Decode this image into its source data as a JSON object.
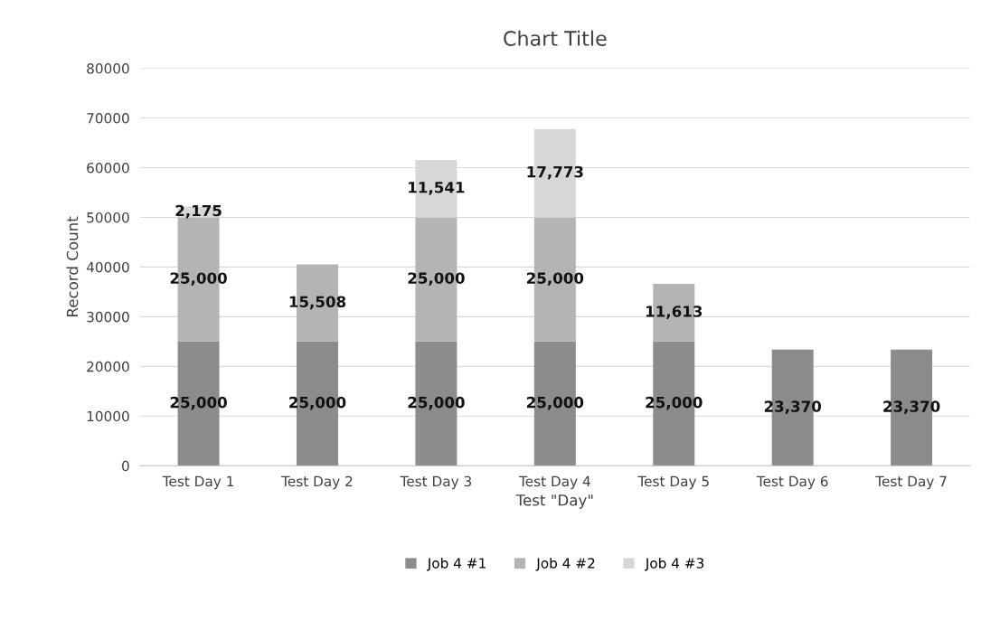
{
  "chart_data": {
    "type": "bar",
    "title": "Chart Title",
    "xlabel": "Test \"Day\"",
    "ylabel": "Record Count",
    "categories": [
      "Test Day 1",
      "Test Day 2",
      "Test Day 3",
      "Test Day 4",
      "Test Day 5",
      "Test Day 6",
      "Test Day 7"
    ],
    "stacked": true,
    "ylim": [
      0,
      80000
    ],
    "yticks": [
      0,
      10000,
      20000,
      30000,
      40000,
      50000,
      60000,
      70000,
      80000
    ],
    "grid": "y",
    "legend": "bottom",
    "series": [
      {
        "name": "Job 4 #1",
        "color": "#8c8c8c",
        "values": [
          25000,
          25000,
          25000,
          25000,
          25000,
          23370,
          23370
        ],
        "value_labels": [
          "25,000",
          "25,000",
          "25,000",
          "25,000",
          "25,000",
          "23,370",
          "23,370"
        ]
      },
      {
        "name": "Job 4 #2",
        "color": "#b4b4b4",
        "values": [
          25000,
          15508,
          25000,
          25000,
          11613,
          null,
          null
        ],
        "value_labels": [
          "25,000",
          "15,508",
          "25,000",
          "25,000",
          "11,613",
          null,
          null
        ]
      },
      {
        "name": "Job 4 #3",
        "color": "#d7d7d7",
        "values": [
          2175,
          null,
          11541,
          17773,
          null,
          null,
          null
        ],
        "value_labels": [
          "2,175",
          null,
          "11,541",
          "17,773",
          null,
          null,
          null
        ]
      }
    ]
  }
}
